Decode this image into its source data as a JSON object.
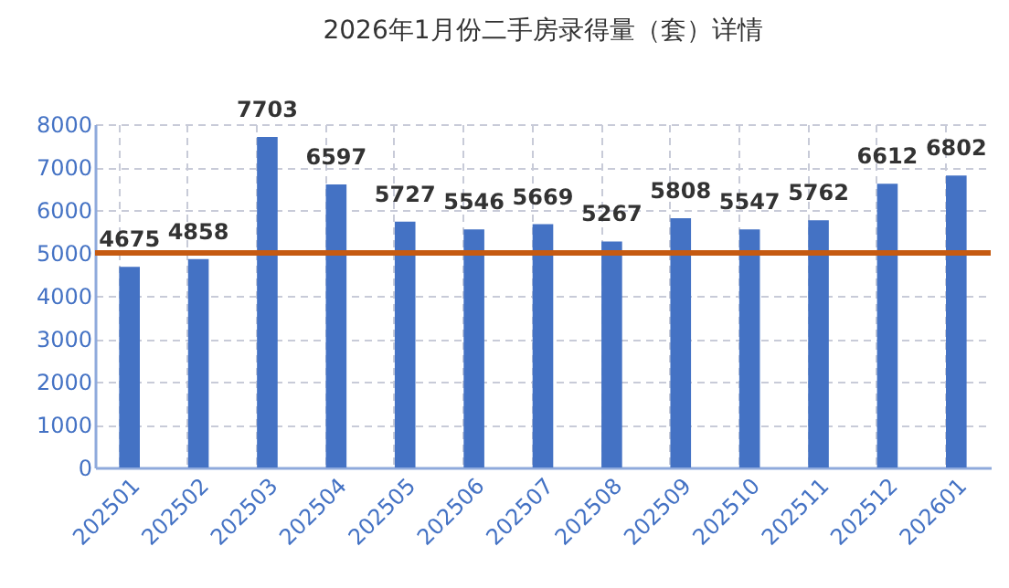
{
  "chart_data": {
    "type": "bar",
    "title": "2026年1月份二手房录得量（套）详情",
    "categories": [
      "202501",
      "202502",
      "202503",
      "202504",
      "202505",
      "202506",
      "202507",
      "202508",
      "202509",
      "202510",
      "202511",
      "202512",
      "202601"
    ],
    "values": [
      4675,
      4858,
      7703,
      6597,
      5727,
      5546,
      5669,
      5267,
      5808,
      5547,
      5762,
      6612,
      6802
    ],
    "color": "#4472c4",
    "ylim": [
      0,
      8000
    ],
    "yticks": [
      0,
      1000,
      2000,
      3000,
      4000,
      5000,
      6000,
      7000,
      8000
    ],
    "grid": true,
    "data_labels": true,
    "ref_lines": [
      {
        "axis": "y",
        "value": 5000,
        "color": "#c55a11",
        "line_style": "solid"
      }
    ]
  }
}
